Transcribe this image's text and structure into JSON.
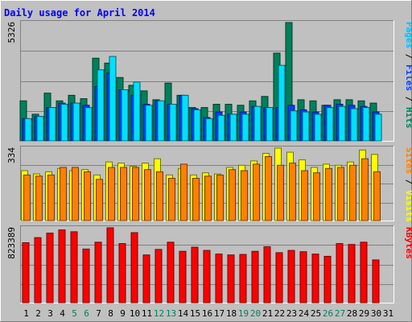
{
  "title": "Daily usage for April 2014",
  "colors": {
    "background": "#C0C0C0",
    "hits": "#00805C",
    "files": "#0040FF",
    "pages": "#00E0FF",
    "visits": "#FFFF00",
    "sites": "#FF8000",
    "kbytes": "#FF0000",
    "title_text": "#0000FF"
  },
  "chart_data": [
    {
      "type": "bar",
      "panel": "top",
      "ymax_label": "5326",
      "ylim": [
        0,
        5326
      ],
      "grid": true,
      "side_label": [
        {
          "text": "Pages",
          "color": "#00C0FF"
        },
        {
          "text": " / ",
          "color": "#000000"
        },
        {
          "text": "Files",
          "color": "#0040FF"
        },
        {
          "text": " / ",
          "color": "#000000"
        },
        {
          "text": "Hits",
          "color": "#00805C"
        }
      ],
      "categories": [
        "1",
        "2",
        "3",
        "4",
        "5",
        "6",
        "7",
        "8",
        "9",
        "10",
        "11",
        "12",
        "13",
        "14",
        "15",
        "16",
        "17",
        "18",
        "19",
        "20",
        "21",
        "22",
        "23",
        "24",
        "25",
        "26",
        "27",
        "28",
        "29",
        "30",
        "31"
      ],
      "series": [
        {
          "name": "Hits",
          "values": [
            1800,
            1200,
            2150,
            1800,
            2050,
            1900,
            3720,
            3500,
            2850,
            2500,
            2250,
            1850,
            2600,
            2050,
            1500,
            1500,
            1650,
            1650,
            1600,
            1800,
            2000,
            3950,
            5326,
            1850,
            1800,
            1600,
            1850,
            1850,
            1800,
            1700,
            0
          ]
        },
        {
          "name": "Files",
          "values": [
            1000,
            1100,
            1500,
            1700,
            1700,
            1600,
            2450,
            3050,
            2300,
            2050,
            1650,
            1800,
            1650,
            2050,
            1450,
            1050,
            1300,
            1200,
            1300,
            1550,
            1500,
            1500,
            1600,
            1400,
            1300,
            1600,
            1650,
            1600,
            1550,
            1300,
            0
          ]
        },
        {
          "name": "Pages",
          "values": [
            1000,
            1100,
            1500,
            1650,
            1700,
            1500,
            3200,
            3800,
            2300,
            2650,
            1600,
            1800,
            1650,
            2050,
            1400,
            1000,
            1150,
            1200,
            1200,
            1550,
            1500,
            3400,
            1350,
            1300,
            1200,
            1500,
            1550,
            1450,
            1500,
            1200,
            0
          ]
        }
      ]
    },
    {
      "type": "bar",
      "panel": "middle",
      "ymax_label": "334",
      "ylim": [
        0,
        334
      ],
      "grid": true,
      "side_label": [
        {
          "text": "Sites",
          "color": "#FF8000"
        },
        {
          "text": " / ",
          "color": "#000000"
        },
        {
          "text": "Visits",
          "color": "#FFFF00"
        }
      ],
      "categories": [
        "1",
        "2",
        "3",
        "4",
        "5",
        "6",
        "7",
        "8",
        "9",
        "10",
        "11",
        "12",
        "13",
        "14",
        "15",
        "16",
        "17",
        "18",
        "19",
        "20",
        "21",
        "22",
        "23",
        "24",
        "25",
        "26",
        "27",
        "28",
        "29",
        "30",
        "31"
      ],
      "series": [
        {
          "name": "Visits",
          "values": [
            230,
            215,
            225,
            240,
            230,
            235,
            210,
            270,
            265,
            250,
            265,
            285,
            210,
            240,
            210,
            220,
            215,
            245,
            255,
            275,
            310,
            334,
            315,
            280,
            245,
            260,
            255,
            270,
            325,
            305,
            0
          ]
        },
        {
          "name": "Sites",
          "values": [
            210,
            205,
            210,
            245,
            245,
            225,
            190,
            245,
            245,
            245,
            235,
            225,
            195,
            260,
            195,
            205,
            210,
            235,
            230,
            260,
            295,
            255,
            265,
            230,
            220,
            240,
            245,
            255,
            285,
            225,
            0
          ]
        }
      ]
    },
    {
      "type": "bar",
      "panel": "bottom",
      "ymax_label": "823389",
      "ylim": [
        0,
        823389
      ],
      "grid": true,
      "side_label": [
        {
          "text": "KBytes",
          "color": "#FF0000"
        }
      ],
      "categories": [
        "1",
        "2",
        "3",
        "4",
        "5",
        "6",
        "7",
        "8",
        "9",
        "10",
        "11",
        "12",
        "13",
        "14",
        "15",
        "16",
        "17",
        "18",
        "19",
        "20",
        "21",
        "22",
        "23",
        "24",
        "25",
        "26",
        "27",
        "28",
        "29",
        "30",
        "31"
      ],
      "series": [
        {
          "name": "KBytes",
          "values": [
            660000,
            715000,
            765000,
            800000,
            780000,
            590000,
            665000,
            823389,
            650000,
            770000,
            525000,
            585000,
            665000,
            565000,
            610000,
            575000,
            535000,
            525000,
            530000,
            565000,
            615000,
            550000,
            575000,
            560000,
            535000,
            510000,
            650000,
            640000,
            665000,
            470000,
            0
          ]
        }
      ]
    }
  ],
  "x_labels": [
    {
      "text": "1",
      "weekend": false
    },
    {
      "text": "2",
      "weekend": false
    },
    {
      "text": "3",
      "weekend": false
    },
    {
      "text": "4",
      "weekend": false
    },
    {
      "text": "5",
      "weekend": true
    },
    {
      "text": "6",
      "weekend": true
    },
    {
      "text": "7",
      "weekend": false
    },
    {
      "text": "8",
      "weekend": false
    },
    {
      "text": "9",
      "weekend": false
    },
    {
      "text": "10",
      "weekend": false
    },
    {
      "text": "11",
      "weekend": false
    },
    {
      "text": "12",
      "weekend": true
    },
    {
      "text": "13",
      "weekend": true
    },
    {
      "text": "14",
      "weekend": false
    },
    {
      "text": "15",
      "weekend": false
    },
    {
      "text": "16",
      "weekend": false
    },
    {
      "text": "17",
      "weekend": false
    },
    {
      "text": "18",
      "weekend": false
    },
    {
      "text": "19",
      "weekend": true
    },
    {
      "text": "20",
      "weekend": true
    },
    {
      "text": "21",
      "weekend": false
    },
    {
      "text": "22",
      "weekend": false
    },
    {
      "text": "23",
      "weekend": false
    },
    {
      "text": "24",
      "weekend": false
    },
    {
      "text": "25",
      "weekend": false
    },
    {
      "text": "26",
      "weekend": true
    },
    {
      "text": "27",
      "weekend": true
    },
    {
      "text": "28",
      "weekend": false
    },
    {
      "text": "29",
      "weekend": false
    },
    {
      "text": "30",
      "weekend": false
    },
    {
      "text": "31",
      "weekend": false
    }
  ],
  "weekend_color": "#00805C",
  "weekday_color": "#000000"
}
